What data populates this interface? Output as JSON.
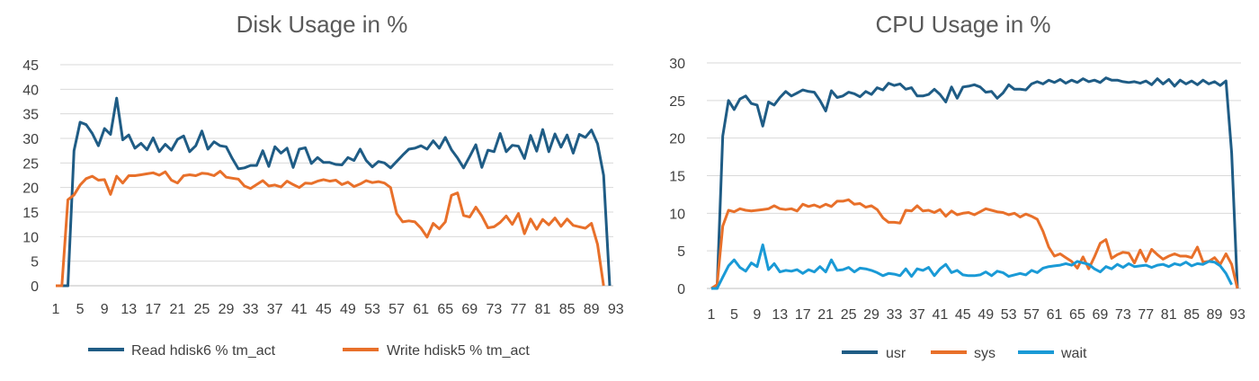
{
  "colors": {
    "dark_blue": "#1f5c85",
    "orange": "#e8702a",
    "light_blue": "#1a9ad6"
  },
  "chart_data": [
    {
      "type": "line",
      "title": "Disk Usage in %",
      "ylim": [
        0,
        45
      ],
      "yticks": [
        "0",
        "5",
        "10",
        "15",
        "20",
        "25",
        "30",
        "35",
        "40",
        "45"
      ],
      "xticks": [
        "1",
        "5",
        "9",
        "13",
        "17",
        "21",
        "25",
        "29",
        "33",
        "37",
        "41",
        "45",
        "49",
        "53",
        "57",
        "61",
        "65",
        "69",
        "73",
        "77",
        "81",
        "85",
        "89",
        "93"
      ],
      "grid": true,
      "legend_position": "bottom",
      "series": [
        {
          "name": "Read hdisk6 % tm_act",
          "color": "#1f5c85",
          "values": [
            0,
            0,
            0,
            27.5,
            33.3,
            32.8,
            31,
            28.5,
            32,
            30.8,
            38.2,
            29.7,
            30.7,
            28,
            29,
            27.7,
            30.1,
            27.3,
            28.8,
            27.6,
            29.8,
            30.5,
            27.3,
            28.5,
            31.5,
            27.8,
            29.3,
            28.5,
            28.3,
            25.9,
            23.8,
            24,
            24.5,
            24.5,
            27.5,
            24.3,
            28.3,
            27,
            28,
            24.1,
            27.8,
            28.1,
            24.9,
            26.1,
            25.1,
            25.1,
            24.7,
            24.6,
            26.1,
            25.5,
            27.8,
            25.5,
            24.2,
            25.3,
            25,
            24,
            25.3,
            26.6,
            27.8,
            28,
            28.5,
            27.8,
            29.5,
            28,
            30.2,
            27.7,
            26,
            24,
            26.3,
            28.7,
            24.1,
            27.6,
            27.3,
            31,
            27.3,
            28.6,
            28.4,
            25.9,
            30.6,
            27.4,
            31.8,
            27.3,
            30.9,
            28.2,
            30.7,
            27,
            30.8,
            30.2,
            31.7,
            28.9,
            22.5,
            0
          ]
        },
        {
          "name": "Write hdisk5 % tm_act",
          "color": "#e8702a",
          "values": [
            0,
            0,
            17.5,
            18.5,
            20.5,
            21.8,
            22.3,
            21.5,
            21.6,
            18.6,
            22.3,
            20.9,
            22.4,
            22.4,
            22.6,
            22.8,
            23,
            22.5,
            23.2,
            21.5,
            20.9,
            22.4,
            22.6,
            22.4,
            22.9,
            22.8,
            22.4,
            23.3,
            22.1,
            21.9,
            21.7,
            20.3,
            19.8,
            20.6,
            21.4,
            20.3,
            20.5,
            20.1,
            21.3,
            20.6,
            20,
            20.9,
            20.8,
            21.3,
            21.6,
            21.3,
            21.5,
            20.6,
            21.1,
            20.2,
            20.7,
            21.4,
            21,
            21.2,
            20.9,
            20,
            14.7,
            13,
            13.2,
            13,
            11.7,
            9.9,
            12.7,
            11.6,
            13,
            18.4,
            18.9,
            14.3,
            14,
            16,
            14.2,
            11.8,
            12,
            12.9,
            14.2,
            12.5,
            14.7,
            10.6,
            13.6,
            11.5,
            13.5,
            12.4,
            13.8,
            12.1,
            13.6,
            12.3,
            12,
            11.7,
            12.7,
            8.4,
            0
          ]
        }
      ]
    },
    {
      "type": "line",
      "title": "CPU Usage in %",
      "ylim": [
        0,
        30
      ],
      "yticks": [
        "0",
        "5",
        "10",
        "15",
        "20",
        "25",
        "30"
      ],
      "xticks": [
        "1",
        "5",
        "9",
        "13",
        "17",
        "21",
        "25",
        "29",
        "33",
        "37",
        "41",
        "45",
        "49",
        "53",
        "57",
        "61",
        "65",
        "69",
        "73",
        "77",
        "81",
        "85",
        "89",
        "93"
      ],
      "grid": true,
      "legend_position": "bottom",
      "series": [
        {
          "name": "usr",
          "color": "#1f5c85",
          "values": [
            0,
            0,
            20.3,
            25,
            23.8,
            25.2,
            25.6,
            24.6,
            24.4,
            21.6,
            24.8,
            24.4,
            25.4,
            26.2,
            25.6,
            26,
            26.4,
            26.2,
            26.1,
            25,
            23.6,
            26.3,
            25.4,
            25.6,
            26.1,
            25.9,
            25.5,
            26.2,
            25.8,
            26.7,
            26.4,
            27.3,
            27,
            27.2,
            26.5,
            26.7,
            25.6,
            25.6,
            25.8,
            26.5,
            25.8,
            24.8,
            26.8,
            25.3,
            26.8,
            26.9,
            27.1,
            26.8,
            26.1,
            26.2,
            25.3,
            26,
            27.1,
            26.5,
            26.5,
            26.4,
            27.2,
            27.5,
            27.2,
            27.7,
            27.4,
            27.8,
            27.3,
            27.7,
            27.4,
            27.9,
            27.5,
            27.7,
            27.4,
            28,
            27.7,
            27.7,
            27.5,
            27.4,
            27.5,
            27.3,
            27.6,
            27.1,
            27.9,
            27.2,
            27.8,
            26.9,
            27.7,
            27.2,
            27.6,
            27.1,
            27.7,
            27.2,
            27.5,
            27,
            27.6,
            18,
            0
          ]
        },
        {
          "name": "sys",
          "color": "#e8702a",
          "values": [
            0,
            0.5,
            8.3,
            10.4,
            10.2,
            10.6,
            10.4,
            10.3,
            10.4,
            10.5,
            10.6,
            11,
            10.6,
            10.5,
            10.6,
            10.3,
            11.2,
            10.9,
            11.1,
            10.8,
            11.2,
            10.9,
            11.6,
            11.6,
            11.8,
            11.2,
            11.3,
            10.8,
            11,
            10.5,
            9.4,
            8.8,
            8.8,
            8.7,
            10.4,
            10.3,
            11,
            10.3,
            10.4,
            10.1,
            10.5,
            9.6,
            10.3,
            9.8,
            10,
            10.1,
            9.8,
            10.2,
            10.6,
            10.4,
            10.2,
            10.1,
            9.8,
            10,
            9.5,
            9.9,
            9.6,
            9.2,
            7.6,
            5.5,
            4.3,
            4.6,
            4.1,
            3.6,
            2.7,
            4.2,
            2.6,
            4.2,
            6,
            6.5,
            4,
            4.5,
            4.8,
            4.7,
            3.4,
            5.1,
            3.6,
            5.2,
            4.5,
            3.9,
            4.3,
            4.6,
            4.3,
            4.3,
            4.1,
            5.5,
            3.5,
            3.6,
            4.1,
            3.2,
            4.6,
            3.2,
            0
          ]
        },
        {
          "name": "wait",
          "color": "#1a9ad6",
          "values": [
            0,
            0,
            1.5,
            3,
            3.8,
            2.8,
            2.3,
            3.4,
            2.9,
            5.8,
            2.5,
            3.3,
            2.2,
            2.4,
            2.3,
            2.5,
            2,
            2.5,
            2.2,
            2.9,
            2.2,
            3.8,
            2.4,
            2.5,
            2.8,
            2.2,
            2.7,
            2.6,
            2.4,
            2.1,
            1.7,
            2,
            1.9,
            1.7,
            2.6,
            1.6,
            2.6,
            2.4,
            2.8,
            1.7,
            2.6,
            3.2,
            2.1,
            2.4,
            1.8,
            1.7,
            1.7,
            1.8,
            2.2,
            1.7,
            2.3,
            2.1,
            1.6,
            1.8,
            2,
            1.8,
            2.4,
            2.1,
            2.7,
            2.9,
            3,
            3.1,
            3.3,
            3.1,
            3.6,
            3.4,
            3.2,
            2.6,
            2.2,
            2.9,
            2.6,
            3.2,
            2.8,
            3.3,
            2.9,
            3,
            3.1,
            2.8,
            3.1,
            3.2,
            2.9,
            3.3,
            3.1,
            3.5,
            3,
            3.3,
            3.2,
            3.6,
            3.5,
            3,
            2,
            0.5
          ]
        }
      ]
    }
  ]
}
